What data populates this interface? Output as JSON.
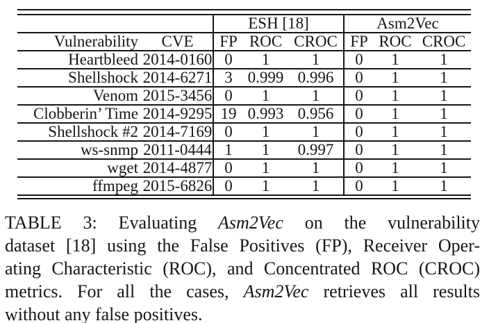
{
  "table": {
    "group_headers": [
      {
        "label": "ESH [18]"
      },
      {
        "label": "Asm2Vec"
      }
    ],
    "column_headers": [
      "Vulnerability",
      "CVE",
      "FP",
      "ROC",
      "CROC",
      "FP",
      "ROC",
      "CROC"
    ],
    "rows": [
      {
        "vulnerability": "Heartbleed",
        "cve": "2014-0160",
        "esh": {
          "fp": "0",
          "roc": "1",
          "croc": "1"
        },
        "asm2vec": {
          "fp": "0",
          "roc": "1",
          "croc": "1"
        }
      },
      {
        "vulnerability": "Shellshock",
        "cve": "2014-6271",
        "esh": {
          "fp": "3",
          "roc": "0.999",
          "croc": "0.996"
        },
        "asm2vec": {
          "fp": "0",
          "roc": "1",
          "croc": "1"
        }
      },
      {
        "vulnerability": "Venom",
        "cve": "2015-3456",
        "esh": {
          "fp": "0",
          "roc": "1",
          "croc": "1"
        },
        "asm2vec": {
          "fp": "0",
          "roc": "1",
          "croc": "1"
        }
      },
      {
        "vulnerability": "Clobberin’ Time",
        "cve": "2014-9295",
        "esh": {
          "fp": "19",
          "roc": "0.993",
          "croc": "0.956"
        },
        "asm2vec": {
          "fp": "0",
          "roc": "1",
          "croc": "1"
        }
      },
      {
        "vulnerability": "Shellshock #2",
        "cve": "2014-7169",
        "esh": {
          "fp": "0",
          "roc": "1",
          "croc": "1"
        },
        "asm2vec": {
          "fp": "0",
          "roc": "1",
          "croc": "1"
        }
      },
      {
        "vulnerability": "ws-snmp",
        "cve": "2011-0444",
        "esh": {
          "fp": "1",
          "roc": "1",
          "croc": "0.997"
        },
        "asm2vec": {
          "fp": "0",
          "roc": "1",
          "croc": "1"
        }
      },
      {
        "vulnerability": "wget",
        "cve": "2014-4877",
        "esh": {
          "fp": "0",
          "roc": "1",
          "croc": "1"
        },
        "asm2vec": {
          "fp": "0",
          "roc": "1",
          "croc": "1"
        }
      },
      {
        "vulnerability": "ffmpeg",
        "cve": "2015-6826",
        "esh": {
          "fp": "0",
          "roc": "1",
          "croc": "1"
        },
        "asm2vec": {
          "fp": "0",
          "roc": "1",
          "croc": "1"
        }
      }
    ]
  },
  "caption": {
    "lines": [
      {
        "justify": true,
        "segments": [
          {
            "text": "TABLE 3: Evaluating "
          },
          {
            "text": "Asm2Vec",
            "italic": true
          },
          {
            "text": " on the vulnerability"
          }
        ]
      },
      {
        "justify": true,
        "segments": [
          {
            "text": "dataset [18] using the False Positives (FP), Receiver Oper-"
          }
        ]
      },
      {
        "justify": true,
        "segments": [
          {
            "text": "ating Characteristic (ROC), and Concentrated ROC (CROC)"
          }
        ]
      },
      {
        "justify": true,
        "segments": [
          {
            "text": "metrics. For all the cases, "
          },
          {
            "text": "Asm2Vec",
            "italic": true
          },
          {
            "text": " retrieves all results"
          }
        ]
      },
      {
        "justify": false,
        "segments": [
          {
            "text": "without any false positives."
          }
        ]
      }
    ]
  },
  "colors": {
    "text": "#161616",
    "background": "#ffffff",
    "rule": "#161616"
  }
}
